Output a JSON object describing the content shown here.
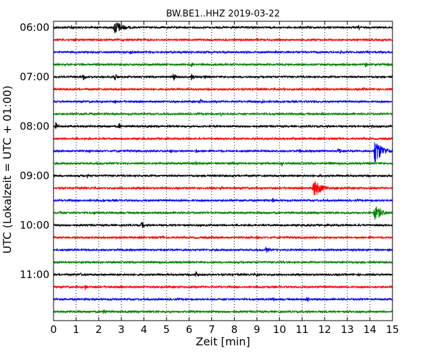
{
  "chart_data": {
    "type": "line",
    "title": "BW.BE1..HHZ 2019-03-22",
    "xlabel": "Zeit  [min]",
    "ylabel": "UTC (Lokalzeit = UTC + 01:00)",
    "xlim": [
      0,
      15
    ],
    "x_ticks": [
      "0",
      "1",
      "2",
      "3",
      "4",
      "5",
      "6",
      "7",
      "8",
      "9",
      "10",
      "11",
      "12",
      "13",
      "14",
      "15"
    ],
    "y_tick_labels": [
      "06:00",
      "07:00",
      "08:00",
      "09:00",
      "10:00",
      "11:00"
    ],
    "grid": true,
    "colors": [
      "#000000",
      "#ff0000",
      "#0000ff",
      "#008000"
    ],
    "trace_interval_min": 15,
    "traces": [
      {
        "start": "06:00",
        "color": "#000000",
        "events": [
          {
            "t": 0.8,
            "a": 4
          },
          {
            "t": 2.7,
            "a": 12
          },
          {
            "t": 13.5,
            "a": 4
          }
        ]
      },
      {
        "start": "06:15",
        "color": "#ff0000",
        "events": [
          {
            "t": 0.9,
            "a": 4
          },
          {
            "t": 7.6,
            "a": 3
          }
        ]
      },
      {
        "start": "06:30",
        "color": "#0000ff",
        "events": [
          {
            "t": 3.4,
            "a": 4
          },
          {
            "t": 9.8,
            "a": 4
          },
          {
            "t": 12.7,
            "a": 3
          }
        ]
      },
      {
        "start": "06:45",
        "color": "#008000",
        "events": [
          {
            "t": 6.1,
            "a": 4
          },
          {
            "t": 13.8,
            "a": 4
          },
          {
            "t": 14.8,
            "a": 4
          }
        ]
      },
      {
        "start": "07:00",
        "color": "#000000",
        "events": [
          {
            "t": 1.3,
            "a": 6
          },
          {
            "t": 2.7,
            "a": 8
          },
          {
            "t": 5.3,
            "a": 7
          },
          {
            "t": 6.1,
            "a": 6
          },
          {
            "t": 6.7,
            "a": 3
          }
        ]
      },
      {
        "start": "07:15",
        "color": "#ff0000",
        "events": [
          {
            "t": 3.8,
            "a": 3
          },
          {
            "t": 10.2,
            "a": 3
          },
          {
            "t": 13.7,
            "a": 3
          }
        ]
      },
      {
        "start": "07:30",
        "color": "#0000ff",
        "events": [
          {
            "t": 2.7,
            "a": 4
          },
          {
            "t": 6.5,
            "a": 5
          },
          {
            "t": 9.2,
            "a": 5
          },
          {
            "t": 11.5,
            "a": 3
          }
        ]
      },
      {
        "start": "07:45",
        "color": "#008000",
        "events": [
          {
            "t": 1.6,
            "a": 3
          },
          {
            "t": 7.4,
            "a": 4
          },
          {
            "t": 11.9,
            "a": 3
          }
        ]
      },
      {
        "start": "08:00",
        "color": "#000000",
        "events": [
          {
            "t": 0.1,
            "a": 6
          },
          {
            "t": 2.9,
            "a": 5
          },
          {
            "t": 14.1,
            "a": 4
          }
        ]
      },
      {
        "start": "08:15",
        "color": "#ff0000",
        "events": [
          {
            "t": 10.6,
            "a": 3
          }
        ]
      },
      {
        "start": "08:30",
        "color": "#0000ff",
        "events": [
          {
            "t": 1.6,
            "a": 3
          },
          {
            "t": 5.2,
            "a": 3
          },
          {
            "t": 6.3,
            "a": 4
          },
          {
            "t": 10.9,
            "a": 4
          },
          {
            "t": 12.6,
            "a": 7
          },
          {
            "t": 14.2,
            "a": 20
          }
        ]
      },
      {
        "start": "08:45",
        "color": "#008000",
        "events": [
          {
            "t": 6.3,
            "a": 3
          },
          {
            "t": 7.9,
            "a": 3
          },
          {
            "t": 10.1,
            "a": 4
          },
          {
            "t": 12.2,
            "a": 4
          }
        ]
      },
      {
        "start": "09:00",
        "color": "#000000",
        "events": [
          {
            "t": 1.5,
            "a": 3
          },
          {
            "t": 6.8,
            "a": 3
          },
          {
            "t": 11.8,
            "a": 3
          }
        ]
      },
      {
        "start": "09:15",
        "color": "#ff0000",
        "events": [
          {
            "t": 0.3,
            "a": 4
          },
          {
            "t": 7.4,
            "a": 4
          },
          {
            "t": 11.5,
            "a": 15
          },
          {
            "t": 12.5,
            "a": 3
          }
        ]
      },
      {
        "start": "09:30",
        "color": "#0000ff",
        "events": [
          {
            "t": 2.2,
            "a": 3
          },
          {
            "t": 7.0,
            "a": 3
          },
          {
            "t": 9.7,
            "a": 4
          }
        ]
      },
      {
        "start": "09:45",
        "color": "#008000",
        "events": [
          {
            "t": 0.3,
            "a": 3
          },
          {
            "t": 1.8,
            "a": 3
          },
          {
            "t": 14.2,
            "a": 12
          }
        ]
      },
      {
        "start": "10:00",
        "color": "#000000",
        "events": [
          {
            "t": 3.9,
            "a": 6
          }
        ]
      },
      {
        "start": "10:15",
        "color": "#ff0000",
        "events": [
          {
            "t": 4.8,
            "a": 4
          },
          {
            "t": 9.0,
            "a": 3
          }
        ]
      },
      {
        "start": "10:30",
        "color": "#0000ff",
        "events": [
          {
            "t": 9.4,
            "a": 7
          },
          {
            "t": 10.5,
            "a": 3
          }
        ]
      },
      {
        "start": "10:45",
        "color": "#008000",
        "events": [
          {
            "t": 12.8,
            "a": 3
          }
        ]
      },
      {
        "start": "11:00",
        "color": "#000000",
        "events": [
          {
            "t": 1.2,
            "a": 3
          },
          {
            "t": 6.3,
            "a": 6
          },
          {
            "t": 9.0,
            "a": 4
          },
          {
            "t": 13.5,
            "a": 3
          }
        ]
      },
      {
        "start": "11:15",
        "color": "#ff0000",
        "events": [
          {
            "t": 1.4,
            "a": 5
          }
        ]
      },
      {
        "start": "11:30",
        "color": "#0000ff",
        "events": [
          {
            "t": 9.7,
            "a": 4
          },
          {
            "t": 11.2,
            "a": 5
          }
        ]
      },
      {
        "start": "11:45",
        "color": "#008000",
        "events": [
          {
            "t": 2.2,
            "a": 6
          },
          {
            "t": 6.1,
            "a": 3
          }
        ]
      }
    ]
  }
}
